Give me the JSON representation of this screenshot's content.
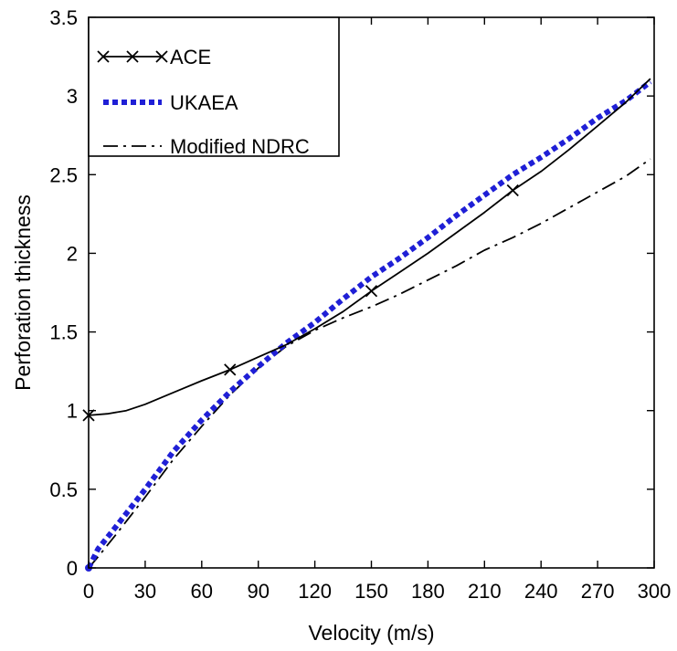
{
  "chart_data": {
    "type": "line",
    "title": "",
    "xlabel": "Velocity (m/s)",
    "ylabel": "Perforation thickness",
    "xlim": [
      0,
      300
    ],
    "ylim": [
      0,
      3.5
    ],
    "xticks": [
      0,
      30,
      60,
      90,
      120,
      150,
      180,
      210,
      240,
      270,
      300
    ],
    "yticks": [
      0,
      0.5,
      1,
      1.5,
      2,
      2.5,
      3,
      3.5
    ],
    "xtick_labels": [
      "0",
      "30",
      "60",
      "90",
      "120",
      "150",
      "180",
      "210",
      "240",
      "270",
      "300"
    ],
    "ytick_labels": [
      "0",
      "0.5",
      "1",
      "1.5",
      "2",
      "2.5",
      "3",
      "3.5"
    ],
    "grid": false,
    "legend_position": "top-left",
    "series": [
      {
        "name": "ACE",
        "color": "#000000",
        "style": "solid-with-x-markers",
        "x": [
          0,
          10,
          20,
          30,
          40,
          50,
          60,
          75,
          90,
          105,
          120,
          135,
          150,
          165,
          180,
          195,
          210,
          225,
          240,
          255,
          270,
          285,
          298
        ],
        "y": [
          0.97,
          0.98,
          1.0,
          1.04,
          1.09,
          1.14,
          1.19,
          1.26,
          1.34,
          1.42,
          1.52,
          1.63,
          1.76,
          1.88,
          2.0,
          2.13,
          2.26,
          2.4,
          2.52,
          2.66,
          2.81,
          2.96,
          3.11
        ],
        "markers_x": [
          0,
          75,
          150,
          225
        ],
        "markers_y": [
          0.97,
          1.26,
          1.76,
          2.4
        ]
      },
      {
        "name": "UKAEA",
        "color": "#1f1fd6",
        "style": "thick-dotted",
        "x": [
          0,
          5,
          15,
          30,
          45,
          60,
          75,
          90,
          105,
          120,
          135,
          150,
          165,
          180,
          195,
          210,
          225,
          240,
          255,
          270,
          285,
          298
        ],
        "y": [
          0.0,
          0.12,
          0.27,
          0.5,
          0.74,
          0.94,
          1.12,
          1.28,
          1.43,
          1.56,
          1.71,
          1.85,
          1.97,
          2.1,
          2.24,
          2.37,
          2.5,
          2.61,
          2.73,
          2.86,
          2.97,
          3.09
        ]
      },
      {
        "name": "Modified NDRC",
        "color": "#000000",
        "style": "dash-dot",
        "x": [
          0,
          5,
          15,
          30,
          45,
          60,
          75,
          90,
          105,
          120,
          135,
          150,
          165,
          180,
          195,
          210,
          225,
          240,
          255,
          270,
          285,
          298
        ],
        "y": [
          0.0,
          0.07,
          0.22,
          0.45,
          0.69,
          0.9,
          1.1,
          1.27,
          1.41,
          1.51,
          1.59,
          1.66,
          1.74,
          1.83,
          1.92,
          2.02,
          2.1,
          2.19,
          2.29,
          2.39,
          2.49,
          2.6
        ]
      }
    ]
  }
}
